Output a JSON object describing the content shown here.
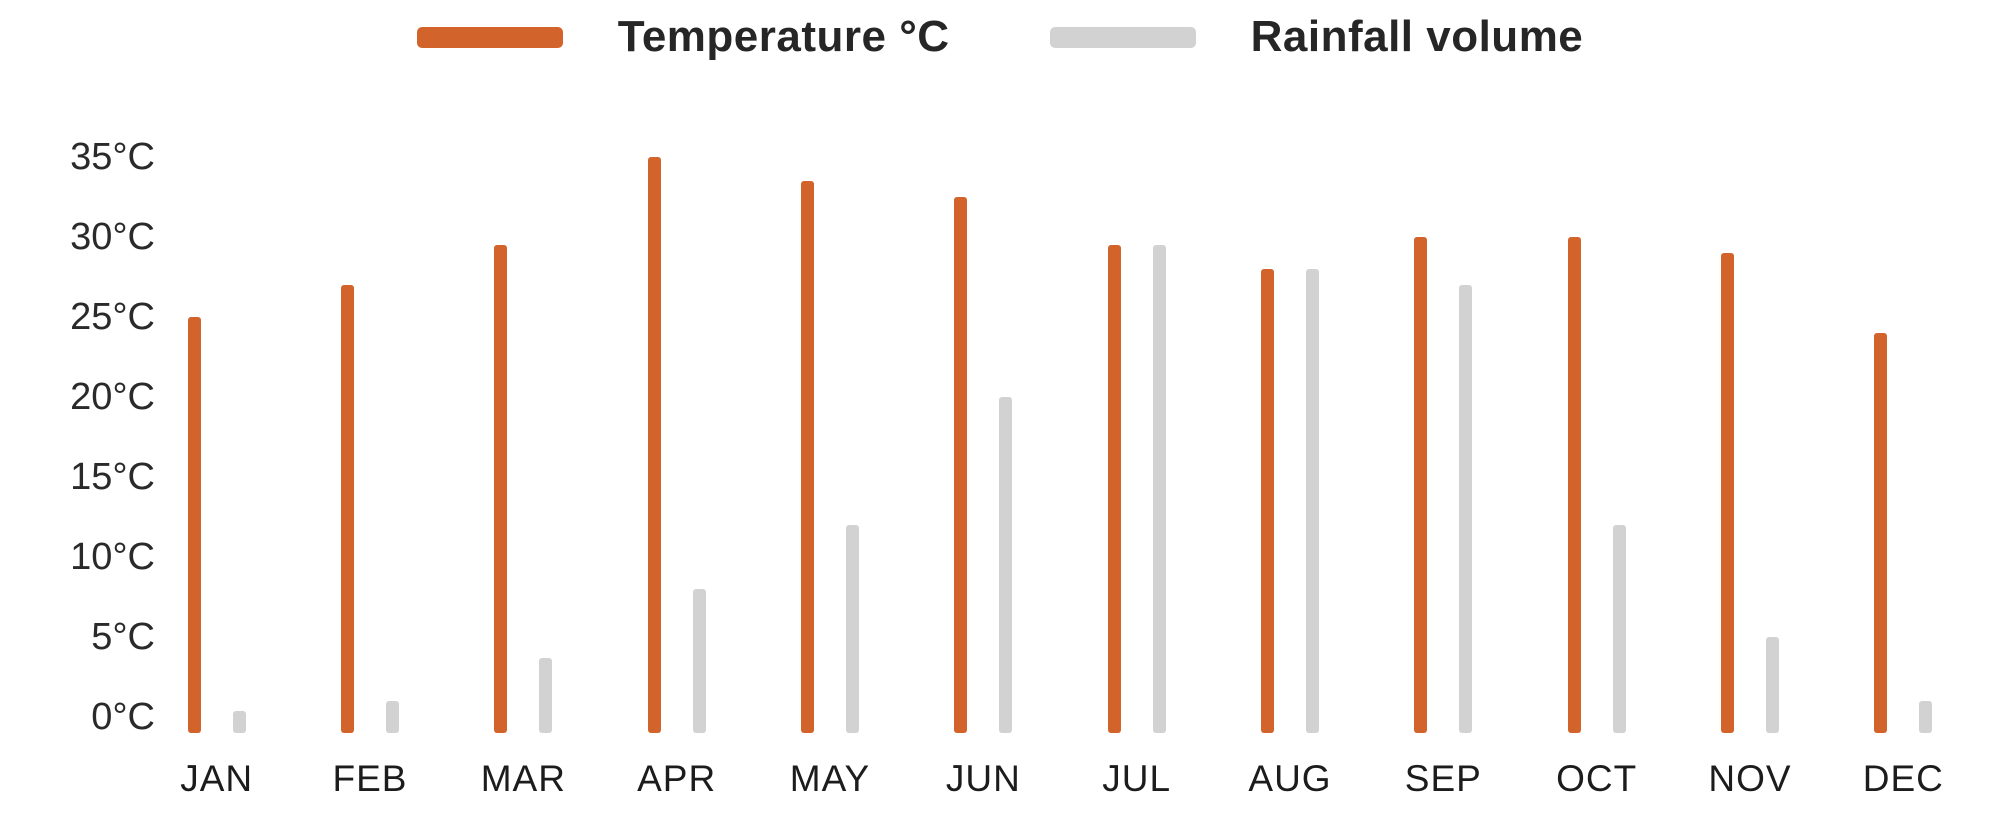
{
  "legend": {
    "items": [
      {
        "label": "Temperature °C",
        "color": "#d2642b"
      },
      {
        "label": "Rainfall volume",
        "color": "#d2d2d2"
      }
    ]
  },
  "chart_data": {
    "type": "bar",
    "title": "",
    "xlabel": "",
    "ylabel": "",
    "categories": [
      "JAN",
      "FEB",
      "MAR",
      "APR",
      "MAY",
      "JUN",
      "JUL",
      "AUG",
      "SEP",
      "OCT",
      "NOV",
      "DEC"
    ],
    "series": [
      {
        "name": "Temperature °C",
        "color": "#d2642b",
        "values": [
          25,
          27,
          29.5,
          35,
          33.5,
          32.5,
          29.5,
          28,
          30,
          30,
          29,
          24
        ]
      },
      {
        "name": "Rainfall volume",
        "color": "#d2d2d2",
        "values": [
          0.4,
          1,
          3.7,
          8,
          12,
          20,
          29.5,
          28,
          27,
          12,
          5,
          1
        ]
      }
    ],
    "ytick_labels": [
      "35°C",
      "30°C",
      "25°C",
      "20°C",
      "15°C",
      "10°C",
      "5°C",
      "0°C"
    ],
    "ytick_values": [
      35,
      30,
      25,
      20,
      15,
      10,
      5,
      0
    ],
    "ylim": [
      -1,
      36
    ],
    "grid": false,
    "legend_position": "top"
  }
}
